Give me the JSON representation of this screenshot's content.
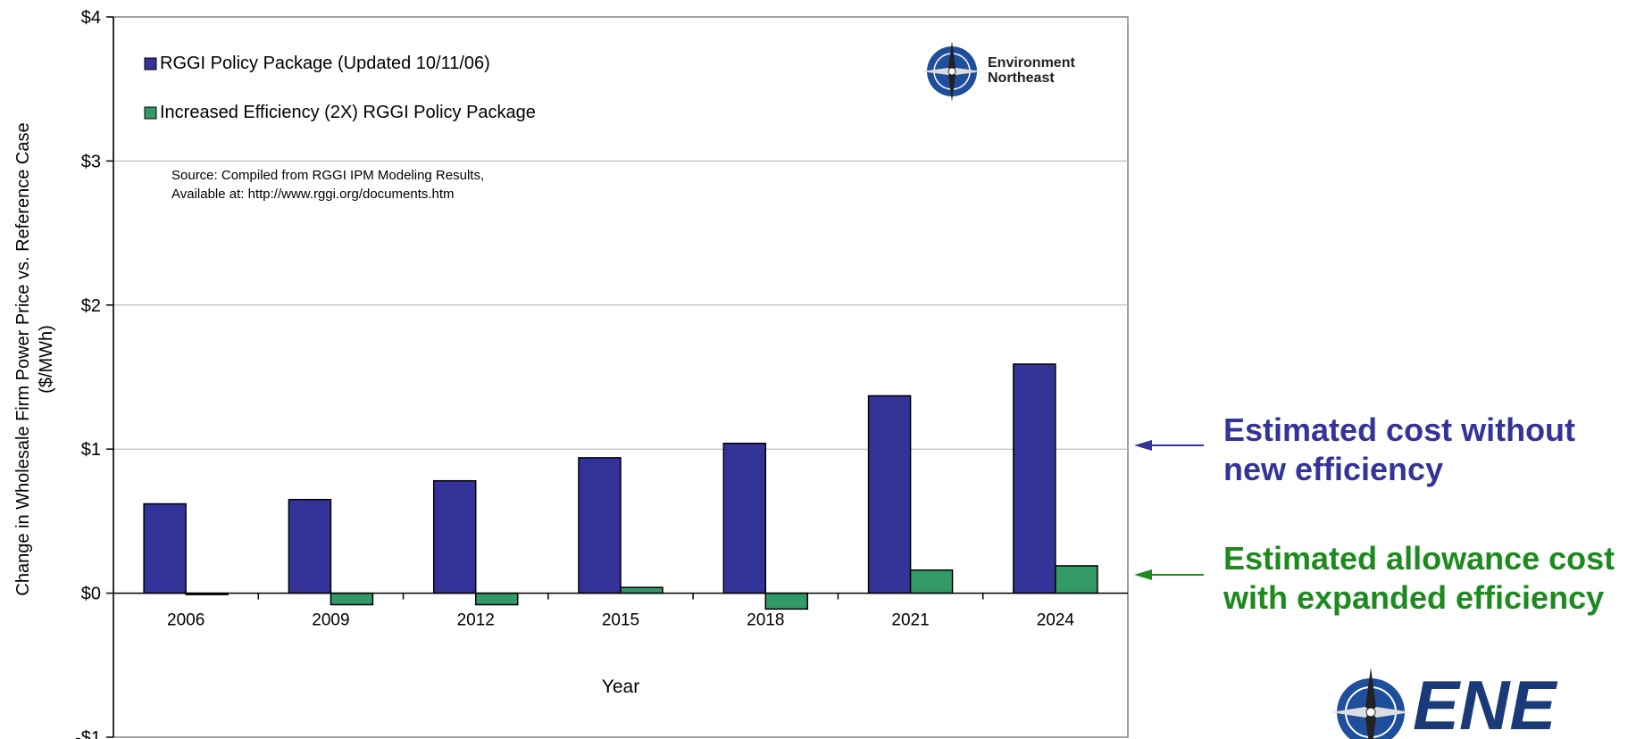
{
  "chart_data": {
    "type": "bar",
    "categories": [
      "2006",
      "2009",
      "2012",
      "2015",
      "2018",
      "2021",
      "2024"
    ],
    "series": [
      {
        "name": "RGGI Policy Package (Updated 10/11/06)",
        "color": "#333399",
        "values": [
          0.62,
          0.65,
          0.78,
          0.94,
          1.04,
          1.37,
          1.59
        ]
      },
      {
        "name": "Increased Efficiency (2X) RGGI Policy Package",
        "color": "#339966",
        "values": [
          -0.01,
          -0.08,
          -0.08,
          0.04,
          -0.11,
          0.16,
          0.19
        ]
      }
    ],
    "title": "",
    "xlabel": "Year",
    "ylabel": "Change in Wholesale Firm Power Price vs. Reference Case\n($/MWh)",
    "ylim": [
      -1,
      4
    ],
    "yticks": [
      4,
      3,
      2,
      1,
      0,
      -1
    ],
    "ytick_labels": [
      "$4",
      "$3",
      "$2",
      "$1",
      "$0",
      "-$1"
    ],
    "grid": true,
    "legend_position": "top-left",
    "source_note": "Source: Compiled from RGGI IPM Modeling Results,\nAvailable at: http://www.rggi.org/documents.htm",
    "logo_text": "Environment\nNortheast"
  },
  "annotations": {
    "blue": {
      "text": "Estimated cost without\nnew efficiency",
      "color": "#333399"
    },
    "green": {
      "text": "Estimated allowance cost\nwith expanded efficiency",
      "color": "#1c8a1c"
    }
  },
  "brand_logo_text": "ENE"
}
